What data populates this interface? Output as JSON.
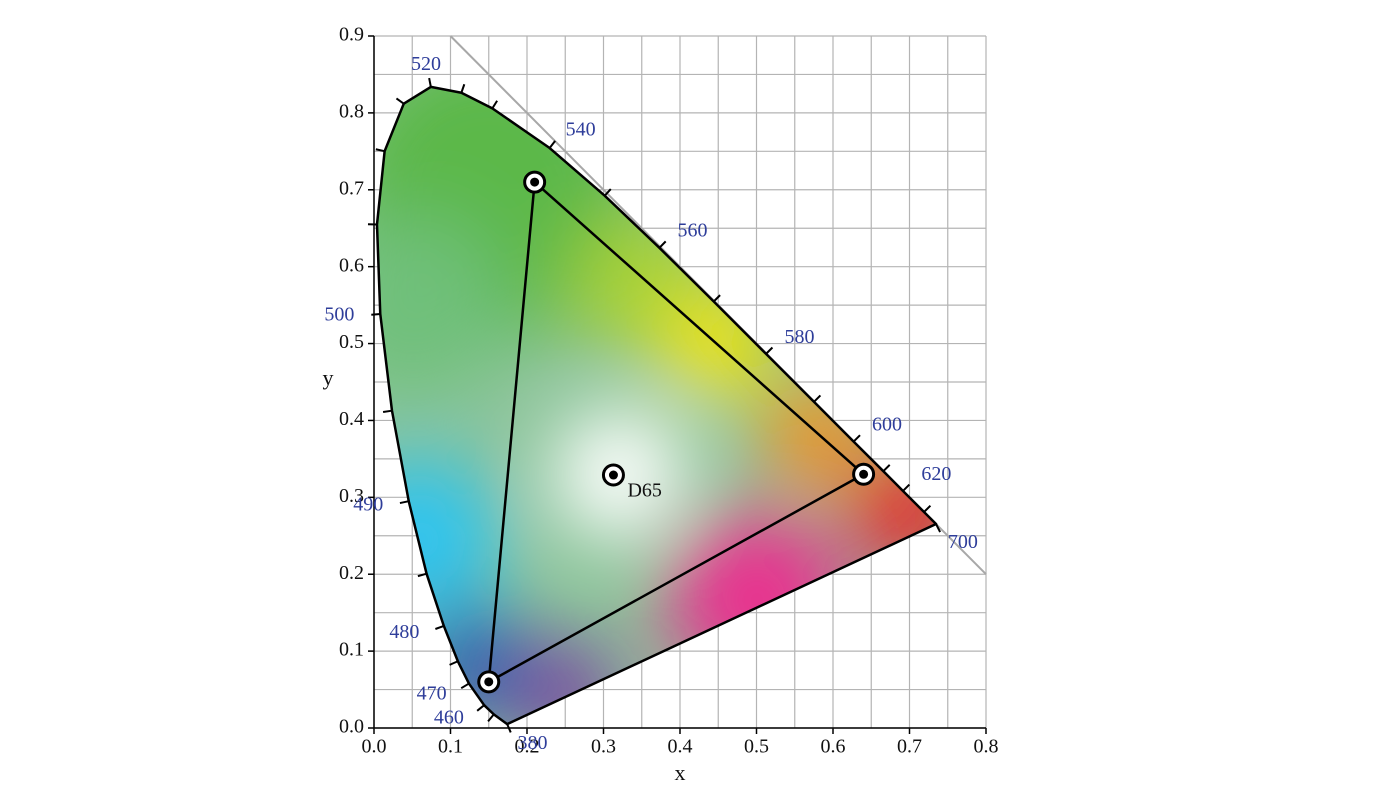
{
  "chart_data": {
    "type": "chromaticity",
    "x_label": "x",
    "y_label": "y",
    "xlim": [
      0,
      0.8
    ],
    "ylim": [
      0,
      0.9
    ],
    "xticks": [
      {
        "value": 0,
        "label": "0.0"
      },
      0.1,
      0.2,
      0.3,
      0.4,
      0.5,
      0.6,
      0.7,
      0.8
    ],
    "yticks": [
      {
        "value": 0,
        "label": "0.0"
      },
      0.1,
      0.2,
      0.3,
      0.4,
      0.5,
      0.6,
      0.7,
      0.8,
      0.9
    ],
    "xminorticks": [
      0.05,
      0.15,
      0.25,
      0.35,
      0.45,
      0.55,
      0.65,
      0.75
    ],
    "yminorticks": [
      0.05,
      0.15,
      0.25,
      0.35,
      0.45,
      0.55,
      0.65,
      0.75,
      0.85
    ],
    "grid": true,
    "spectral_locus": {
      "color": "#000000",
      "label_color": "#2e3d9a",
      "wavelengths": [
        380,
        null,
        460,
        470,
        null,
        480,
        null,
        490,
        null,
        500,
        null,
        null,
        null,
        520,
        null,
        null,
        540,
        null,
        560,
        null,
        580,
        null,
        600,
        null,
        620,
        null,
        700
      ],
      "x": [
        0.1741,
        0.1566,
        0.144,
        0.1241,
        0.1096,
        0.0913,
        0.0687,
        0.0454,
        0.0235,
        0.0082,
        0.0039,
        0.0139,
        0.0389,
        0.0743,
        0.1142,
        0.1547,
        0.2296,
        0.3016,
        0.3731,
        0.4441,
        0.5125,
        0.5752,
        0.627,
        0.6658,
        0.6915,
        0.719,
        0.7347
      ],
      "y": [
        0.005,
        0.0177,
        0.0297,
        0.0578,
        0.0868,
        0.1327,
        0.2007,
        0.295,
        0.4127,
        0.5384,
        0.6548,
        0.7502,
        0.812,
        0.8338,
        0.8262,
        0.8059,
        0.7543,
        0.6923,
        0.6245,
        0.5547,
        0.4866,
        0.4242,
        0.3725,
        0.334,
        0.3083,
        0.2809,
        0.2653
      ]
    },
    "gamut": {
      "color": "#000000",
      "x": [
        0.64,
        0.21,
        0.15
      ],
      "y": [
        0.33,
        0.71,
        0.06
      ]
    },
    "white_point": {
      "name": "D65",
      "x": 0.313,
      "y": 0.329
    }
  }
}
